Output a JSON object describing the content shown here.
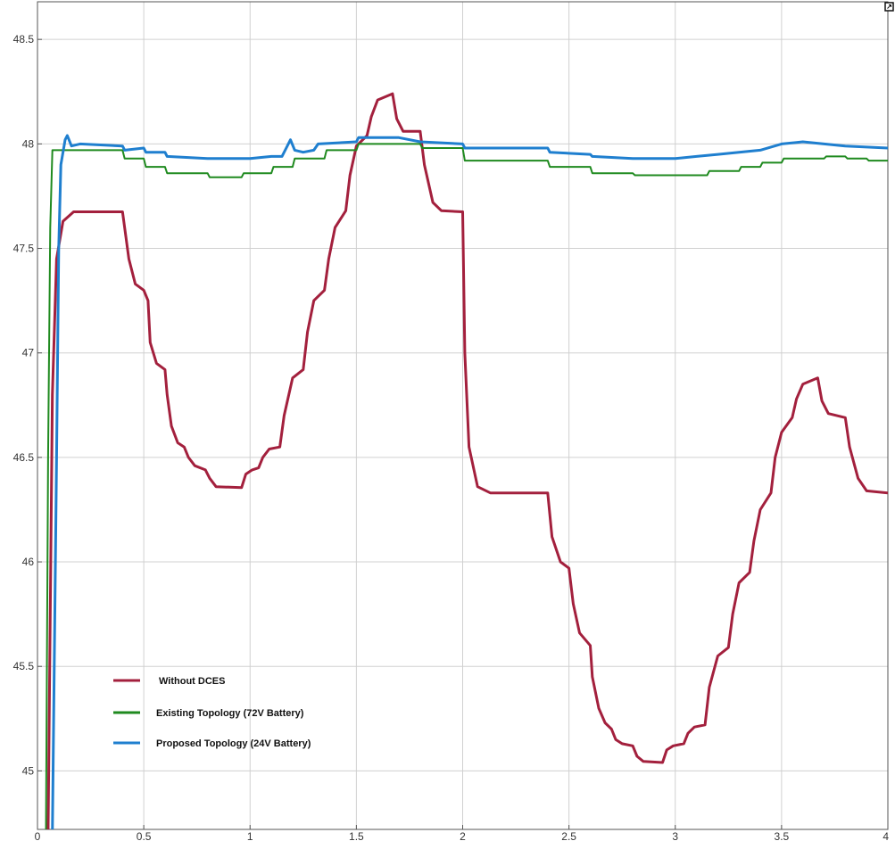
{
  "chart_data": {
    "type": "line",
    "title": "",
    "xlabel": "",
    "ylabel": "",
    "xlim": [
      0,
      4
    ],
    "ylim": [
      44.72,
      48.68
    ],
    "grid": true,
    "legend_position": "bottom-left",
    "x_ticks": [
      0,
      0.5,
      1,
      1.5,
      2,
      2.5,
      3,
      3.5,
      4
    ],
    "x_tick_labels": [
      "0",
      "0.5",
      "1",
      "1.5",
      "2",
      "2.5",
      "3",
      "3.5",
      "4"
    ],
    "y_ticks": [
      45,
      45.5,
      46,
      46.5,
      47,
      47.5,
      48,
      48.5
    ],
    "y_tick_labels": [
      "45",
      "45.5",
      "46",
      "46.5",
      "47",
      "47.5",
      "48",
      "48.5"
    ],
    "series": [
      {
        "name": "Without DCES",
        "color": "#a3203d",
        "points": [
          [
            0.05,
            44.7
          ],
          [
            0.07,
            46.8
          ],
          [
            0.09,
            47.45
          ],
          [
            0.12,
            47.63
          ],
          [
            0.17,
            47.675
          ],
          [
            0.4,
            47.675
          ],
          [
            0.43,
            47.45
          ],
          [
            0.46,
            47.33
          ],
          [
            0.5,
            47.3
          ],
          [
            0.52,
            47.25
          ],
          [
            0.53,
            47.05
          ],
          [
            0.56,
            46.95
          ],
          [
            0.6,
            46.92
          ],
          [
            0.61,
            46.8
          ],
          [
            0.63,
            46.65
          ],
          [
            0.66,
            46.57
          ],
          [
            0.69,
            46.55
          ],
          [
            0.71,
            46.5
          ],
          [
            0.74,
            46.46
          ],
          [
            0.79,
            46.44
          ],
          [
            0.81,
            46.4
          ],
          [
            0.84,
            46.36
          ],
          [
            0.96,
            46.355
          ],
          [
            0.98,
            46.42
          ],
          [
            1.01,
            46.44
          ],
          [
            1.04,
            46.45
          ],
          [
            1.06,
            46.5
          ],
          [
            1.09,
            46.54
          ],
          [
            1.14,
            46.55
          ],
          [
            1.16,
            46.7
          ],
          [
            1.2,
            46.88
          ],
          [
            1.25,
            46.92
          ],
          [
            1.27,
            47.1
          ],
          [
            1.3,
            47.25
          ],
          [
            1.35,
            47.3
          ],
          [
            1.37,
            47.45
          ],
          [
            1.4,
            47.6
          ],
          [
            1.45,
            47.68
          ],
          [
            1.47,
            47.85
          ],
          [
            1.5,
            47.99
          ],
          [
            1.55,
            48.04
          ],
          [
            1.57,
            48.13
          ],
          [
            1.6,
            48.21
          ],
          [
            1.67,
            48.24
          ],
          [
            1.69,
            48.12
          ],
          [
            1.72,
            48.06
          ],
          [
            1.8,
            48.06
          ],
          [
            1.82,
            47.9
          ],
          [
            1.86,
            47.72
          ],
          [
            1.9,
            47.68
          ],
          [
            2.0,
            47.675
          ],
          [
            2.01,
            47.0
          ],
          [
            2.03,
            46.55
          ],
          [
            2.07,
            46.36
          ],
          [
            2.13,
            46.33
          ],
          [
            2.4,
            46.33
          ],
          [
            2.42,
            46.12
          ],
          [
            2.46,
            46.0
          ],
          [
            2.5,
            45.97
          ],
          [
            2.52,
            45.8
          ],
          [
            2.55,
            45.66
          ],
          [
            2.6,
            45.6
          ],
          [
            2.61,
            45.45
          ],
          [
            2.64,
            45.3
          ],
          [
            2.67,
            45.23
          ],
          [
            2.7,
            45.2
          ],
          [
            2.72,
            45.15
          ],
          [
            2.75,
            45.13
          ],
          [
            2.8,
            45.12
          ],
          [
            2.82,
            45.07
          ],
          [
            2.85,
            45.045
          ],
          [
            2.94,
            45.04
          ],
          [
            2.96,
            45.1
          ],
          [
            2.99,
            45.12
          ],
          [
            3.04,
            45.13
          ],
          [
            3.06,
            45.18
          ],
          [
            3.09,
            45.21
          ],
          [
            3.14,
            45.22
          ],
          [
            3.16,
            45.4
          ],
          [
            3.2,
            45.55
          ],
          [
            3.25,
            45.59
          ],
          [
            3.27,
            45.75
          ],
          [
            3.3,
            45.9
          ],
          [
            3.35,
            45.95
          ],
          [
            3.37,
            46.1
          ],
          [
            3.4,
            46.25
          ],
          [
            3.45,
            46.33
          ],
          [
            3.47,
            46.5
          ],
          [
            3.5,
            46.62
          ],
          [
            3.55,
            46.69
          ],
          [
            3.57,
            46.78
          ],
          [
            3.6,
            46.85
          ],
          [
            3.67,
            46.88
          ],
          [
            3.69,
            46.77
          ],
          [
            3.72,
            46.71
          ],
          [
            3.8,
            46.69
          ],
          [
            3.82,
            46.55
          ],
          [
            3.86,
            46.4
          ],
          [
            3.9,
            46.34
          ],
          [
            4.0,
            46.33
          ]
        ]
      },
      {
        "name": "Existing Topology (72V Battery)",
        "color": "#1f8a1f",
        "points": [
          [
            0.04,
            44.7
          ],
          [
            0.05,
            46.5
          ],
          [
            0.06,
            47.6
          ],
          [
            0.07,
            47.97
          ],
          [
            0.4,
            47.97
          ],
          [
            0.41,
            47.93
          ],
          [
            0.5,
            47.93
          ],
          [
            0.51,
            47.89
          ],
          [
            0.6,
            47.89
          ],
          [
            0.61,
            47.86
          ],
          [
            0.8,
            47.86
          ],
          [
            0.81,
            47.84
          ],
          [
            0.96,
            47.84
          ],
          [
            0.97,
            47.86
          ],
          [
            1.1,
            47.86
          ],
          [
            1.11,
            47.89
          ],
          [
            1.2,
            47.89
          ],
          [
            1.21,
            47.93
          ],
          [
            1.35,
            47.93
          ],
          [
            1.36,
            47.97
          ],
          [
            1.5,
            47.97
          ],
          [
            1.51,
            48.0
          ],
          [
            1.8,
            48.0
          ],
          [
            1.81,
            47.98
          ],
          [
            2.0,
            47.98
          ],
          [
            2.01,
            47.92
          ],
          [
            2.4,
            47.92
          ],
          [
            2.41,
            47.89
          ],
          [
            2.6,
            47.89
          ],
          [
            2.61,
            47.86
          ],
          [
            2.8,
            47.86
          ],
          [
            2.81,
            47.85
          ],
          [
            3.15,
            47.85
          ],
          [
            3.16,
            47.87
          ],
          [
            3.3,
            47.87
          ],
          [
            3.31,
            47.89
          ],
          [
            3.4,
            47.89
          ],
          [
            3.41,
            47.91
          ],
          [
            3.5,
            47.91
          ],
          [
            3.51,
            47.93
          ],
          [
            3.7,
            47.93
          ],
          [
            3.71,
            47.94
          ],
          [
            3.8,
            47.94
          ],
          [
            3.81,
            47.93
          ],
          [
            3.9,
            47.93
          ],
          [
            3.91,
            47.92
          ],
          [
            4.0,
            47.92
          ]
        ]
      },
      {
        "name": "Proposed Topology (24V Battery)",
        "color": "#1f7fcf",
        "points": [
          [
            0.07,
            44.7
          ],
          [
            0.09,
            46.5
          ],
          [
            0.1,
            47.5
          ],
          [
            0.11,
            47.9
          ],
          [
            0.13,
            48.02
          ],
          [
            0.14,
            48.04
          ],
          [
            0.16,
            47.99
          ],
          [
            0.2,
            48.0
          ],
          [
            0.4,
            47.99
          ],
          [
            0.41,
            47.97
          ],
          [
            0.5,
            47.98
          ],
          [
            0.51,
            47.96
          ],
          [
            0.6,
            47.96
          ],
          [
            0.61,
            47.94
          ],
          [
            0.8,
            47.93
          ],
          [
            1.0,
            47.93
          ],
          [
            1.1,
            47.94
          ],
          [
            1.15,
            47.94
          ],
          [
            1.17,
            47.98
          ],
          [
            1.19,
            48.02
          ],
          [
            1.21,
            47.97
          ],
          [
            1.25,
            47.96
          ],
          [
            1.3,
            47.97
          ],
          [
            1.32,
            48.0
          ],
          [
            1.5,
            48.01
          ],
          [
            1.51,
            48.03
          ],
          [
            1.7,
            48.03
          ],
          [
            1.8,
            48.01
          ],
          [
            2.0,
            48.0
          ],
          [
            2.01,
            47.98
          ],
          [
            2.2,
            47.98
          ],
          [
            2.4,
            47.98
          ],
          [
            2.41,
            47.96
          ],
          [
            2.6,
            47.95
          ],
          [
            2.61,
            47.94
          ],
          [
            2.8,
            47.93
          ],
          [
            3.0,
            47.93
          ],
          [
            3.1,
            47.94
          ],
          [
            3.2,
            47.95
          ],
          [
            3.3,
            47.96
          ],
          [
            3.4,
            47.97
          ],
          [
            3.5,
            48.0
          ],
          [
            3.6,
            48.01
          ],
          [
            3.7,
            48.0
          ],
          [
            3.8,
            47.99
          ],
          [
            4.0,
            47.98
          ]
        ]
      }
    ]
  }
}
